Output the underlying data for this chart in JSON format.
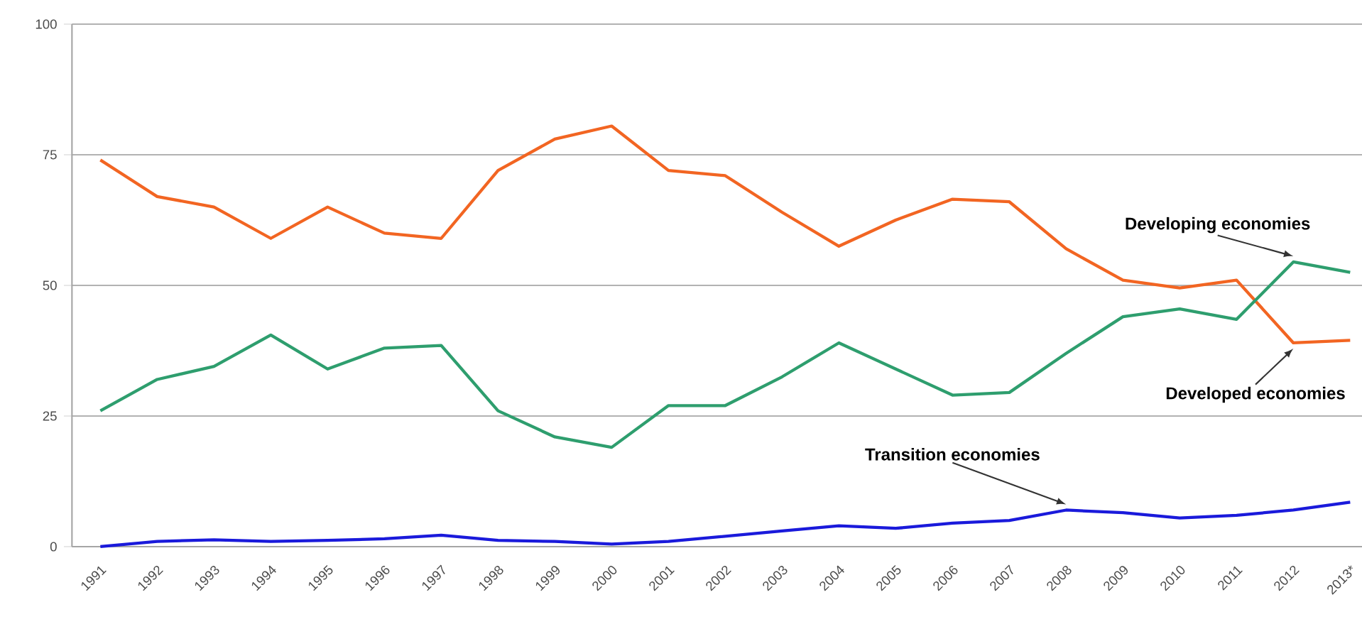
{
  "chart_data": {
    "type": "line",
    "categories": [
      "1991",
      "1992",
      "1993",
      "1994",
      "1995",
      "1996",
      "1997",
      "1998",
      "1999",
      "2000",
      "2001",
      "2002",
      "2003",
      "2004",
      "2005",
      "2006",
      "2007",
      "2008",
      "2009",
      "2010",
      "2011",
      "2012",
      "2013*"
    ],
    "series": [
      {
        "name": "Developed economies",
        "color": "#f26522",
        "values": [
          74,
          67,
          65,
          59,
          65,
          60,
          59,
          72,
          78,
          80.5,
          72,
          71,
          64,
          57.5,
          62.5,
          66.5,
          66,
          57,
          51,
          49.5,
          51,
          39,
          39.5
        ]
      },
      {
        "name": "Developing economies",
        "color": "#2e9e6e",
        "values": [
          26,
          32,
          34.5,
          40.5,
          34,
          38,
          38.5,
          26,
          21,
          19,
          27,
          27,
          32.5,
          39,
          34,
          29,
          29.5,
          37,
          44,
          45.5,
          43.5,
          54.5,
          52.5
        ]
      },
      {
        "name": "Transition economies",
        "color": "#1a1adb",
        "values": [
          0,
          1,
          1.3,
          1,
          1.2,
          1.5,
          2.2,
          1.2,
          1,
          0.5,
          1,
          2,
          3,
          4,
          3.5,
          4.5,
          5,
          7,
          6.5,
          5.5,
          6,
          7,
          8.5
        ]
      }
    ],
    "ylim": [
      0,
      100
    ],
    "yticks": [
      0,
      25,
      50,
      75,
      100
    ],
    "grid": "y",
    "legend": false,
    "marker": "none",
    "line_style": "solid"
  }
}
